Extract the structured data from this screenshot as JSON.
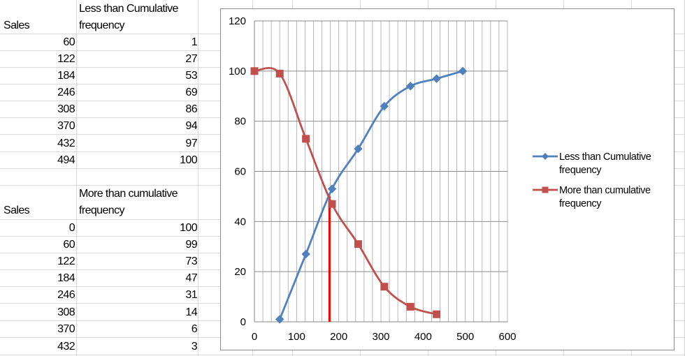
{
  "table1": {
    "header_sales": "Sales",
    "header_freq": "Less than Cumulative frequency",
    "rows": [
      {
        "sales": "60",
        "freq": "1"
      },
      {
        "sales": "122",
        "freq": "27"
      },
      {
        "sales": "184",
        "freq": "53"
      },
      {
        "sales": "246",
        "freq": "69"
      },
      {
        "sales": "308",
        "freq": "86"
      },
      {
        "sales": "370",
        "freq": "94"
      },
      {
        "sales": "432",
        "freq": "97"
      },
      {
        "sales": "494",
        "freq": "100"
      }
    ]
  },
  "table2": {
    "header_sales": "Sales",
    "header_freq": "More than cumulative frequency",
    "rows": [
      {
        "sales": "0",
        "freq": "100"
      },
      {
        "sales": "60",
        "freq": "99"
      },
      {
        "sales": "122",
        "freq": "73"
      },
      {
        "sales": "184",
        "freq": "47"
      },
      {
        "sales": "246",
        "freq": "31"
      },
      {
        "sales": "308",
        "freq": "14"
      },
      {
        "sales": "370",
        "freq": "6"
      },
      {
        "sales": "432",
        "freq": "3"
      }
    ]
  },
  "chart_data": {
    "type": "scatter",
    "title": "",
    "xlabel": "",
    "ylabel": "",
    "xlim": [
      0,
      600
    ],
    "ylim": [
      0,
      120
    ],
    "xticks": [
      0,
      100,
      200,
      300,
      400,
      500,
      600
    ],
    "yticks": [
      0,
      20,
      40,
      60,
      80,
      100,
      120
    ],
    "minor_x_step": 20,
    "grid": true,
    "smooth_lines": true,
    "legend_position": "right",
    "series": [
      {
        "name": "Less than Cumulative frequency",
        "color": "#4f81bd",
        "marker": "diamond",
        "x": [
          60,
          122,
          184,
          246,
          308,
          370,
          432,
          494
        ],
        "y": [
          1,
          27,
          53,
          69,
          86,
          94,
          97,
          100
        ]
      },
      {
        "name": "More than cumulative frequency",
        "color": "#c0504d",
        "marker": "square",
        "x": [
          0,
          60,
          122,
          184,
          246,
          308,
          370,
          432
        ],
        "y": [
          100,
          99,
          73,
          47,
          31,
          14,
          6,
          3
        ]
      }
    ],
    "median_line": {
      "x": 178,
      "color": "#ff0000"
    }
  }
}
